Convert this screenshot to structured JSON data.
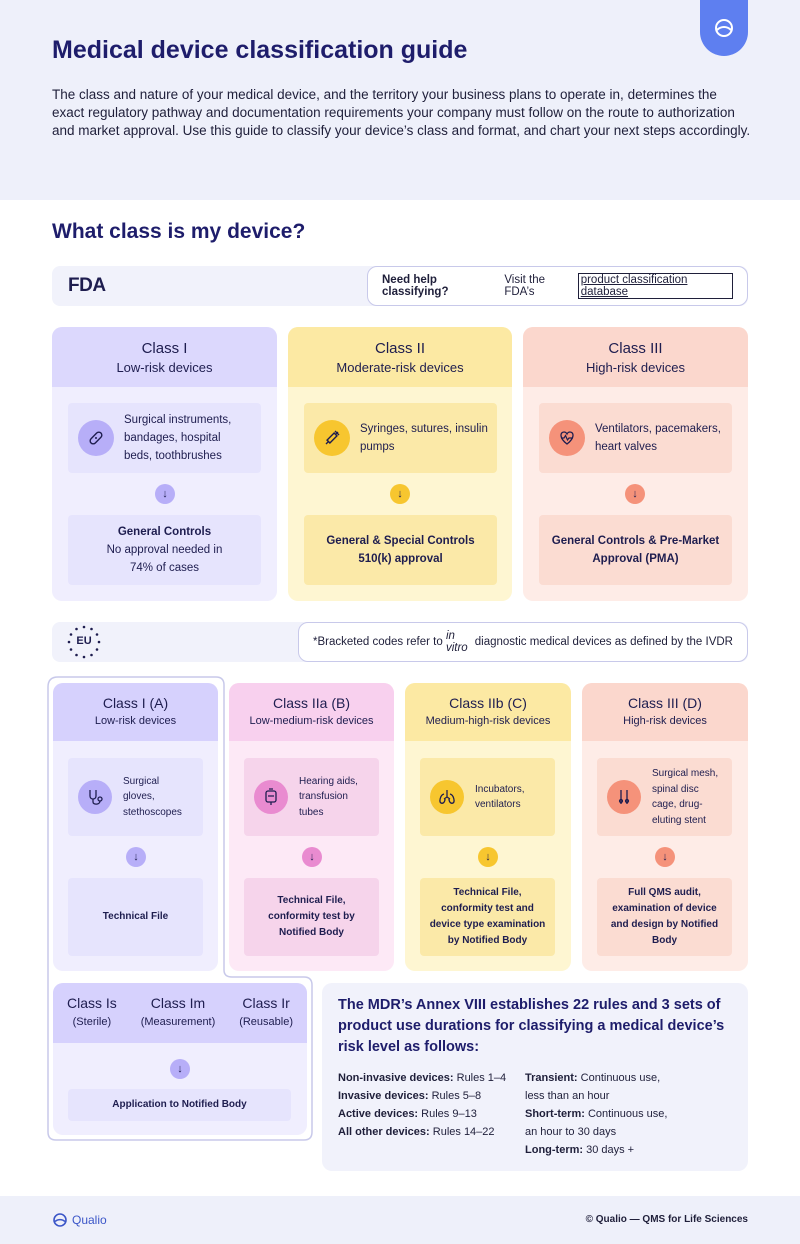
{
  "header": {
    "title": "Medical device classification guide",
    "intro": "The class and nature of your medical device, and the territory your business plans to operate in, determines the exact regulatory pathway and documentation requirements your company must follow on the route to authorization and market approval. Use this guide to classify your device’s class and format, and chart your next steps accordingly."
  },
  "section_title": "What class is my device?",
  "fda": {
    "logo": "FDA",
    "help_bold": "Need help classifying?",
    "help_text": "Visit the FDA’s",
    "help_link": "product classification database",
    "classes": [
      {
        "title": "Class I",
        "subtitle": "Low-risk devices",
        "examples": "Surgical instruments, bandages,  hospital beds, toothbrushes",
        "result_bold": "General Controls",
        "result_text": "No approval needed in 74% of cases",
        "icon": "bandage-icon"
      },
      {
        "title": "Class II",
        "subtitle": "Moderate-risk devices",
        "examples": "Syringes, sutures, insulin pumps",
        "result_bold": "General & Special Controls",
        "result_text": "510(k) approval",
        "icon": "syringe-icon"
      },
      {
        "title": "Class III",
        "subtitle": "High-risk devices",
        "examples": "Ventilators, pacemakers, heart valves",
        "result_bold": "General Controls & Pre-Market Approval (PMA)",
        "result_text": "",
        "icon": "heart-monitor-icon"
      }
    ]
  },
  "eu": {
    "logo": "EU",
    "note_prefix": "*Bracketed codes refer to ",
    "note_italic": "in vitro",
    "note_suffix": " diagnostic medical devices as defined by the IVDR",
    "classes": [
      {
        "title": "Class I (A)",
        "subtitle": "Low-risk devices",
        "examples": "Surgical gloves, stethoscopes",
        "result": "Technical File",
        "icon": "stethoscope-icon"
      },
      {
        "title": "Class IIa (B)",
        "subtitle": "Low-medium-risk devices",
        "examples": "Hearing aids, transfusion tubes",
        "result": "Technical File, conformity test by Notified Body",
        "icon": "blood-bag-icon"
      },
      {
        "title": "Class IIb (C)",
        "subtitle": "Medium-high-risk devices",
        "examples": "Incubators, ventilators",
        "result": "Technical File, conformity test and device type examination by Notified Body",
        "icon": "lungs-icon"
      },
      {
        "title": "Class III (D)",
        "subtitle": "High-risk devices",
        "examples": "Surgical mesh, spinal disc cage, drug-eluting stent",
        "result": "Full QMS audit, examination of device and design by Notified Body",
        "icon": "surgical-tools-icon"
      }
    ],
    "subclasses": [
      {
        "title": "Class Is",
        "subtitle": "(Sterile)"
      },
      {
        "title": "Class Im",
        "subtitle": "(Measurement)"
      },
      {
        "title": "Class Ir",
        "subtitle": "(Reusable)"
      }
    ],
    "subclass_result": "Application to Notified Body"
  },
  "mdr": {
    "heading": "The MDR’s Annex VIII establishes 22 rules and 3 sets of product use durations for classifying a medical device’s risk level as follows:",
    "rules": [
      {
        "label": "Non-invasive devices:",
        "value": " Rules 1–4"
      },
      {
        "label": "Invasive devices:",
        "value": " Rules 5–8"
      },
      {
        "label": "Active devices:",
        "value": " Rules 9–13"
      },
      {
        "label": "All other devices:",
        "value": " Rules 14–22"
      }
    ],
    "durations": [
      {
        "label": "Transient:",
        "value": " Continuous use,",
        "line2": "less than an hour"
      },
      {
        "label": "Short-term:",
        "value": " Continuous use,",
        "line2": "an hour to 30 days"
      },
      {
        "label": "Long-term:",
        "value": " 30 days +",
        "line2": ""
      }
    ]
  },
  "footer": {
    "logo": "Qualio",
    "tagline": "© Qualio — QMS for Life Sciences"
  },
  "colors": {
    "purple": "#dedbfd",
    "purple_head": "#d4cffc",
    "purple_tile": "#e8e6fd",
    "purple_accent": "#b7aef8",
    "yellow": "#fdf3c4",
    "yellow_head": "#fce8a0",
    "yellow_tile": "#fbe8a8",
    "yellow_accent": "#f7c62f",
    "red": "#fde4dd",
    "red_head": "#fbd4ca",
    "red_tile": "#fbd9cf",
    "red_accent": "#f5927a",
    "pink": "#fbe0f3",
    "pink_head": "#f7d0ec",
    "pink_tile": "#f5d3ea",
    "pink_accent": "#e98bd0"
  }
}
